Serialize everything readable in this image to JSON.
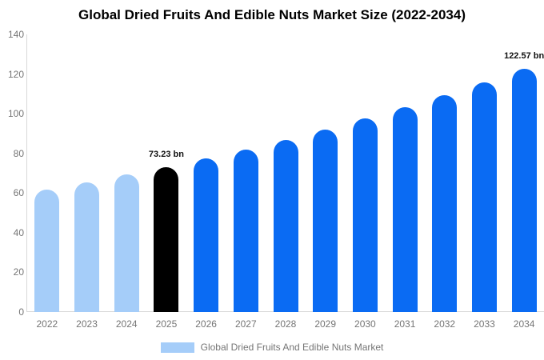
{
  "title": "Global Dried Fruits And Edible Nuts Market Size (2022-2034)",
  "legend": {
    "label": "Global Dried Fruits And Edible Nuts Market",
    "swatch_color": "#a5cdf9"
  },
  "colors": {
    "historical_bar": "#a5cdf9",
    "base_year_bar": "#000000",
    "forecast_bar": "#0a6bf3",
    "axis_line": "#d9d9d9",
    "tick_text": "#757575",
    "value_label_text": "#111111"
  },
  "chart_data": {
    "type": "bar",
    "title": "Global Dried Fruits And Edible Nuts Market Size (2022-2034)",
    "unit": "bn",
    "categories": [
      "2022",
      "2023",
      "2024",
      "2025",
      "2026",
      "2027",
      "2028",
      "2029",
      "2030",
      "2031",
      "2032",
      "2033",
      "2034"
    ],
    "values": [
      61.7,
      65.3,
      69.2,
      73.23,
      77.5,
      82.1,
      86.9,
      92.1,
      97.5,
      103.2,
      109.3,
      115.7,
      122.57
    ],
    "bar_colors": [
      "#a5cdf9",
      "#a5cdf9",
      "#a5cdf9",
      "#000000",
      "#0a6bf3",
      "#0a6bf3",
      "#0a6bf3",
      "#0a6bf3",
      "#0a6bf3",
      "#0a6bf3",
      "#0a6bf3",
      "#0a6bf3",
      "#0a6bf3"
    ],
    "annotations": [
      {
        "category": "2025",
        "text": "73.23 bn"
      },
      {
        "category": "2034",
        "text": "122.57 bn"
      }
    ],
    "xlabel": "",
    "ylabel": "",
    "ylim": [
      0,
      140
    ],
    "ytick_interval": 20,
    "ytick_labels": [
      "0",
      "20",
      "40",
      "60",
      "80",
      "100",
      "120",
      "140"
    ],
    "grid": false,
    "legend_position": "bottom",
    "legend_entries": [
      "Global Dried Fruits And Edible Nuts Market"
    ]
  }
}
